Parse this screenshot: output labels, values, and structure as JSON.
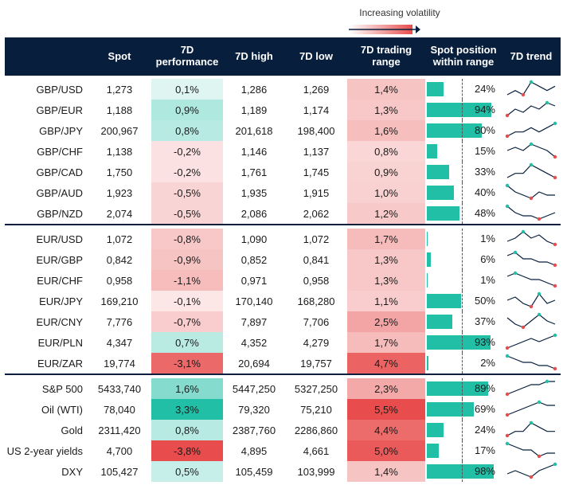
{
  "legend": {
    "label": "Increasing volatility"
  },
  "headers": [
    "",
    "Spot",
    "7D performance",
    "7D high",
    "7D low",
    "7D trading range",
    "Spot position within range",
    "7D trend"
  ],
  "colors": {
    "header_bg": "#071f3d",
    "teal": "#21bfa6",
    "red": "#e84c4c",
    "trend_line": "#071f3d",
    "trend_max": "#21bfa6",
    "trend_min": "#e84c4c"
  },
  "groups": [
    {
      "rows": [
        {
          "name": "GBP/USD",
          "spot": "1,273",
          "perf": "0,1%",
          "perf_value": 0.1,
          "high": "1,286",
          "low": "1,269",
          "range": "1,4%",
          "range_value": 1.4,
          "position": "24%",
          "position_value": 24,
          "trend": [
            3,
            4,
            3,
            6,
            5,
            4,
            5
          ]
        },
        {
          "name": "GBP/EUR",
          "spot": "1,188",
          "perf": "0,9%",
          "perf_value": 0.9,
          "high": "1,189",
          "low": "1,174",
          "range": "1,3%",
          "range_value": 1.3,
          "position": "94%",
          "position_value": 94,
          "trend": [
            2,
            4,
            3,
            5,
            4,
            6,
            5
          ]
        },
        {
          "name": "GBP/JPY",
          "spot": "200,967",
          "perf": "0,8%",
          "perf_value": 0.8,
          "high": "201,618",
          "low": "198,400",
          "range": "1,6%",
          "range_value": 1.6,
          "position": "80%",
          "position_value": 80,
          "trend": [
            2,
            3,
            3,
            4,
            3,
            4,
            5
          ]
        },
        {
          "name": "GBP/CHF",
          "spot": "1,138",
          "perf": "-0,2%",
          "perf_value": -0.2,
          "high": "1,146",
          "low": "1,137",
          "range": "0,8%",
          "range_value": 0.8,
          "position": "15%",
          "position_value": 15,
          "trend": [
            4,
            5,
            4,
            6,
            5,
            4,
            2
          ]
        },
        {
          "name": "GBP/CAD",
          "spot": "1,750",
          "perf": "-0,2%",
          "perf_value": -0.2,
          "high": "1,761",
          "low": "1,745",
          "range": "0,9%",
          "range_value": 0.9,
          "position": "33%",
          "position_value": 33,
          "trend": [
            3,
            4,
            4,
            6,
            5,
            4,
            3
          ]
        },
        {
          "name": "GBP/AUD",
          "spot": "1,923",
          "perf": "-0,5%",
          "perf_value": -0.5,
          "high": "1,935",
          "low": "1,915",
          "range": "1,0%",
          "range_value": 1.0,
          "position": "40%",
          "position_value": 40,
          "trend": [
            6,
            4,
            3,
            2,
            4,
            3,
            3
          ]
        },
        {
          "name": "GBP/NZD",
          "spot": "2,074",
          "perf": "-0,5%",
          "perf_value": -0.5,
          "high": "2,086",
          "low": "2,062",
          "range": "1,2%",
          "range_value": 1.2,
          "position": "48%",
          "position_value": 48,
          "trend": [
            6,
            4,
            3,
            3,
            2,
            3,
            4
          ]
        }
      ]
    },
    {
      "rows": [
        {
          "name": "EUR/USD",
          "spot": "1,072",
          "perf": "-0,8%",
          "perf_value": -0.8,
          "high": "1,090",
          "low": "1,072",
          "range": "1,7%",
          "range_value": 1.7,
          "position": "1%",
          "position_value": 1,
          "trend": [
            3,
            4,
            6,
            4,
            5,
            3,
            2
          ]
        },
        {
          "name": "EUR/GBP",
          "spot": "0,842",
          "perf": "-0,9%",
          "perf_value": -0.9,
          "high": "0,852",
          "low": "0,841",
          "range": "1,3%",
          "range_value": 1.3,
          "position": "6%",
          "position_value": 6,
          "trend": [
            5,
            6,
            4,
            4,
            3,
            3,
            2
          ]
        },
        {
          "name": "EUR/CHF",
          "spot": "0,958",
          "perf": "-1,1%",
          "perf_value": -1.1,
          "high": "0,971",
          "low": "0,958",
          "range": "1,3%",
          "range_value": 1.3,
          "position": "1%",
          "position_value": 1,
          "trend": [
            5,
            6,
            5,
            4,
            4,
            3,
            2
          ]
        },
        {
          "name": "EUR/JPY",
          "spot": "169,210",
          "perf": "-0,1%",
          "perf_value": -0.1,
          "high": "170,140",
          "low": "168,280",
          "range": "1,1%",
          "range_value": 1.1,
          "position": "50%",
          "position_value": 50,
          "trend": [
            4,
            5,
            3,
            2,
            6,
            3,
            4
          ]
        },
        {
          "name": "EUR/CNY",
          "spot": "7,776",
          "perf": "-0,7%",
          "perf_value": -0.7,
          "high": "7,897",
          "low": "7,706",
          "range": "2,5%",
          "range_value": 2.5,
          "position": "37%",
          "position_value": 37,
          "trend": [
            5,
            3,
            2,
            4,
            6,
            4,
            3
          ]
        },
        {
          "name": "EUR/PLN",
          "spot": "4,347",
          "perf": "0,7%",
          "perf_value": 0.7,
          "high": "4,352",
          "low": "4,279",
          "range": "1,7%",
          "range_value": 1.7,
          "position": "93%",
          "position_value": 93,
          "trend": [
            2,
            3,
            4,
            5,
            4,
            5,
            6
          ]
        },
        {
          "name": "EUR/ZAR",
          "spot": "19,774",
          "perf": "-3,1%",
          "perf_value": -3.1,
          "high": "20,694",
          "low": "19,757",
          "range": "4,7%",
          "range_value": 4.7,
          "position": "2%",
          "position_value": 2,
          "trend": [
            6,
            5,
            4,
            4,
            3,
            3,
            2
          ]
        }
      ]
    },
    {
      "rows": [
        {
          "name": "S&P 500",
          "spot": "5433,740",
          "perf": "1,6%",
          "perf_value": 1.6,
          "high": "5447,250",
          "low": "5327,250",
          "range": "2,3%",
          "range_value": 2.3,
          "position": "89%",
          "position_value": 89,
          "trend": [
            2,
            3,
            4,
            5,
            5,
            6,
            6
          ]
        },
        {
          "name": "Oil (WTI)",
          "spot": "78,040",
          "perf": "3,3%",
          "perf_value": 3.3,
          "high": "79,320",
          "low": "75,210",
          "range": "5,5%",
          "range_value": 5.5,
          "position": "69%",
          "position_value": 69,
          "trend": [
            2,
            3,
            4,
            5,
            6,
            5,
            5
          ]
        },
        {
          "name": "Gold",
          "spot": "2311,420",
          "perf": "0,8%",
          "perf_value": 0.8,
          "high": "2387,760",
          "low": "2286,860",
          "range": "4,4%",
          "range_value": 4.4,
          "position": "24%",
          "position_value": 24,
          "trend": [
            3,
            4,
            4,
            6,
            5,
            4,
            4
          ]
        },
        {
          "name": "US 2-year yields",
          "spot": "4,700",
          "perf": "-3,8%",
          "perf_value": -3.8,
          "high": "4,895",
          "low": "4,661",
          "range": "5,0%",
          "range_value": 5.0,
          "position": "17%",
          "position_value": 17,
          "trend": [
            6,
            5,
            4,
            4,
            2,
            3,
            3
          ]
        },
        {
          "name": "DXY",
          "spot": "105,427",
          "perf": "0,5%",
          "perf_value": 0.5,
          "high": "105,459",
          "low": "103,999",
          "range": "1,4%",
          "range_value": 1.4,
          "position": "98%",
          "position_value": 98,
          "trend": [
            3,
            4,
            3,
            2,
            4,
            5,
            6
          ]
        }
      ]
    }
  ]
}
